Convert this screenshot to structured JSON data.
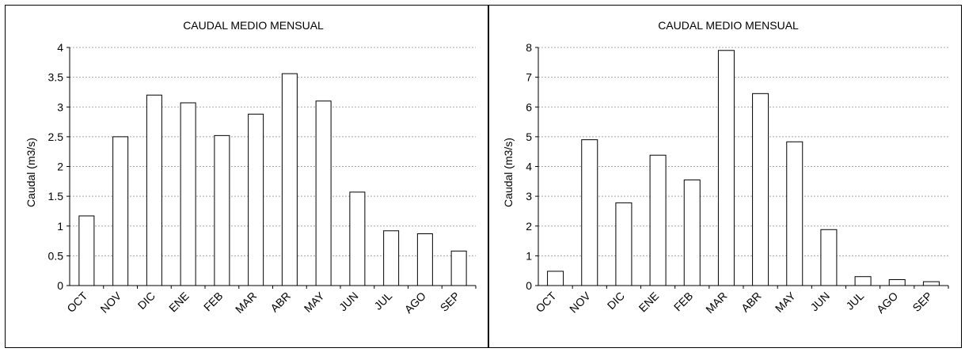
{
  "chart_data": [
    {
      "type": "bar",
      "title": "CAUDAL MEDIO MENSUAL",
      "xlabel": "",
      "ylabel": "Caudal (m3/s)",
      "categories": [
        "OCT",
        "NOV",
        "DIC",
        "ENE",
        "FEB",
        "MAR",
        "ABR",
        "MAY",
        "JUN",
        "JUL",
        "AGO",
        "SEP"
      ],
      "values": [
        1.17,
        2.5,
        3.2,
        3.07,
        2.52,
        2.88,
        3.56,
        3.1,
        1.57,
        0.92,
        0.87,
        0.58
      ],
      "ylim": [
        0,
        4
      ],
      "yticks": [
        "0",
        "0.5",
        "1",
        "1.5",
        "2",
        "2.5",
        "3",
        "3.5",
        "4"
      ],
      "grid": true
    },
    {
      "type": "bar",
      "title": "CAUDAL MEDIO MENSUAL",
      "xlabel": "",
      "ylabel": "Caudal (m3/s)",
      "categories": [
        "OCT",
        "NOV",
        "DIC",
        "ENE",
        "FEB",
        "MAR",
        "ABR",
        "MAY",
        "JUN",
        "JUL",
        "AGO",
        "SEP"
      ],
      "values": [
        0.48,
        4.9,
        2.78,
        4.38,
        3.55,
        7.9,
        6.45,
        4.83,
        1.88,
        0.3,
        0.2,
        0.13
      ],
      "ylim": [
        0,
        8
      ],
      "yticks": [
        "0",
        "1",
        "2",
        "3",
        "4",
        "5",
        "6",
        "7",
        "8"
      ],
      "grid": true
    }
  ]
}
